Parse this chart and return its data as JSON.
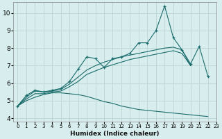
{
  "xlabel": "Humidex (Indice chaleur)",
  "xlim": [
    -0.5,
    23
  ],
  "ylim": [
    3.8,
    10.6
  ],
  "xticks": [
    0,
    1,
    2,
    3,
    4,
    5,
    6,
    7,
    8,
    9,
    10,
    11,
    12,
    13,
    14,
    15,
    16,
    17,
    18,
    19,
    20,
    21,
    22,
    23
  ],
  "yticks": [
    4,
    5,
    6,
    7,
    8,
    9,
    10
  ],
  "bg_color": "#d8eeee",
  "grid_color": "#c0d8d8",
  "line_color": "#1a6b6b",
  "series": [
    {
      "x": [
        0,
        1,
        2,
        3,
        4,
        5,
        6,
        7,
        8,
        9,
        10,
        11,
        12,
        13,
        14,
        15,
        16,
        17,
        18,
        19,
        20,
        21,
        22
      ],
      "y": [
        4.7,
        5.3,
        5.6,
        5.5,
        5.6,
        5.7,
        6.1,
        6.8,
        7.5,
        7.4,
        6.9,
        7.4,
        7.5,
        7.7,
        8.3,
        8.3,
        9.0,
        10.4,
        8.6,
        7.9,
        7.1,
        8.1,
        6.4
      ],
      "marker": true
    },
    {
      "x": [
        0,
        1,
        2,
        3,
        4,
        5,
        6,
        7,
        8,
        9,
        10,
        11,
        12,
        13,
        14,
        15,
        16,
        17,
        18,
        19,
        20
      ],
      "y": [
        4.7,
        5.2,
        5.55,
        5.5,
        5.55,
        5.65,
        5.95,
        6.35,
        6.75,
        7.0,
        7.2,
        7.35,
        7.5,
        7.6,
        7.7,
        7.8,
        7.9,
        8.0,
        8.05,
        7.9,
        7.0
      ],
      "marker": false
    },
    {
      "x": [
        0,
        1,
        2,
        3,
        4,
        5,
        6,
        7,
        8,
        9,
        10,
        11,
        12,
        13,
        14,
        15,
        16,
        17,
        18,
        19,
        20
      ],
      "y": [
        4.7,
        5.1,
        5.4,
        5.4,
        5.5,
        5.55,
        5.8,
        6.1,
        6.5,
        6.7,
        6.9,
        7.05,
        7.2,
        7.35,
        7.45,
        7.55,
        7.65,
        7.75,
        7.85,
        7.7,
        7.0
      ],
      "marker": false
    },
    {
      "x": [
        0,
        1,
        2,
        3,
        4,
        5,
        6,
        7,
        8,
        9,
        10,
        11,
        12,
        13,
        14,
        15,
        16,
        17,
        18,
        19,
        20,
        21,
        22
      ],
      "y": [
        4.7,
        5.0,
        5.2,
        5.35,
        5.45,
        5.45,
        5.4,
        5.35,
        5.25,
        5.1,
        4.95,
        4.85,
        4.7,
        4.6,
        4.5,
        4.45,
        4.4,
        4.35,
        4.3,
        4.25,
        4.2,
        4.15,
        4.1
      ],
      "marker": false
    }
  ]
}
